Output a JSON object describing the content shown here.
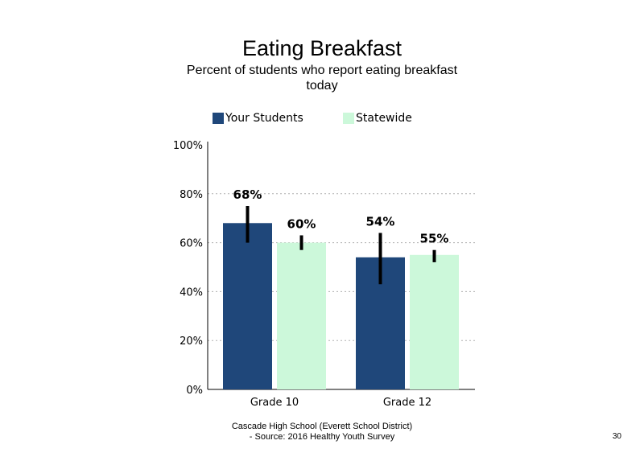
{
  "title": "Eating Breakfast",
  "subtitle": "Percent of students who report eating breakfast today",
  "footer": {
    "line1": "Cascade High School (Everett School District)",
    "line2": "- Source: 2016 Healthy Youth Survey"
  },
  "page_number": "30",
  "colors": {
    "your_students": "#1f477a",
    "statewide": "#ccf8da"
  },
  "chart_data": {
    "type": "bar",
    "categories": [
      "Grade 10",
      "Grade 12"
    ],
    "series": [
      {
        "name": "Your Students",
        "values": [
          68,
          54
        ],
        "labels": [
          "68%",
          "54%"
        ],
        "error": [
          [
            60,
            75
          ],
          [
            43,
            64
          ]
        ]
      },
      {
        "name": "Statewide",
        "values": [
          60,
          55
        ],
        "labels": [
          "60%",
          "55%"
        ],
        "error": [
          [
            57,
            63
          ],
          [
            52,
            57
          ]
        ]
      }
    ],
    "ylim": [
      0,
      100
    ],
    "yticks": [
      "0%",
      "20%",
      "40%",
      "60%",
      "80%",
      "100%"
    ],
    "grid": true,
    "legend": "top"
  }
}
